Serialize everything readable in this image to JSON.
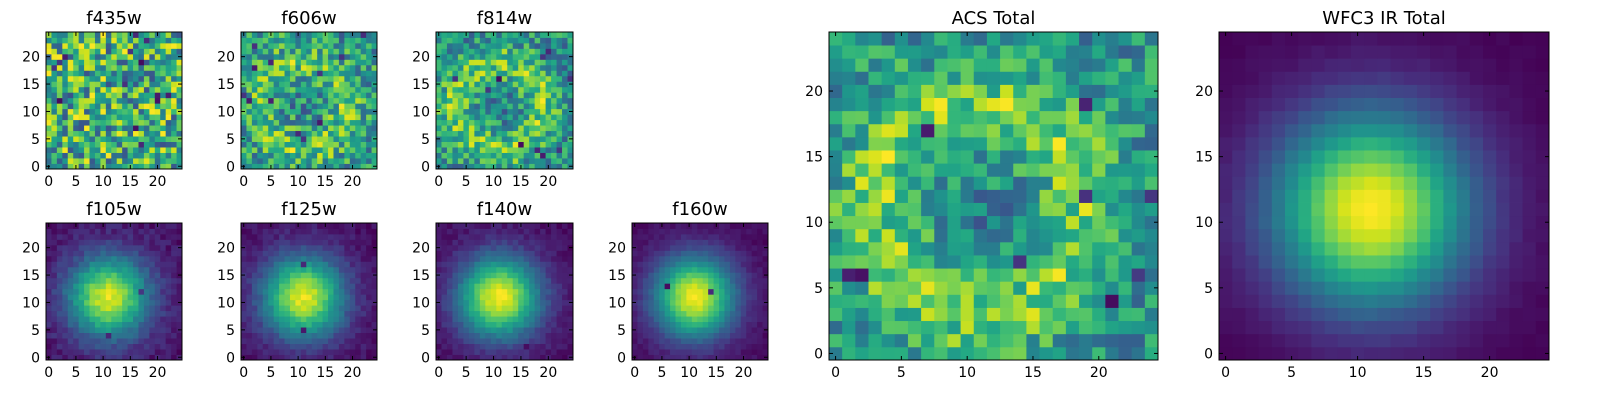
{
  "colormap": "viridis",
  "chart_data": [
    {
      "type": "heatmap",
      "title": "f435w",
      "xticks": [
        0,
        5,
        10,
        15,
        20
      ],
      "yticks": [
        0,
        5,
        10,
        15,
        20
      ],
      "xlim": [
        -0.5,
        24.5
      ],
      "ylim": [
        -0.5,
        24.5
      ],
      "grid_size": 25,
      "pattern": "noise",
      "contrast": 0.3,
      "noise": 0.9,
      "dark_pixels": 14,
      "seed": 11
    },
    {
      "type": "heatmap",
      "title": "f606w",
      "xticks": [
        0,
        5,
        10,
        15,
        20
      ],
      "yticks": [
        0,
        5,
        10,
        15,
        20
      ],
      "xlim": [
        -0.5,
        24.5
      ],
      "ylim": [
        -0.5,
        24.5
      ],
      "grid_size": 25,
      "pattern": "ring",
      "contrast": 0.45,
      "noise": 0.55,
      "dark_pixels": 12,
      "seed": 23
    },
    {
      "type": "heatmap",
      "title": "f814w",
      "xticks": [
        0,
        5,
        10,
        15,
        20
      ],
      "yticks": [
        0,
        5,
        10,
        15,
        20
      ],
      "xlim": [
        -0.5,
        24.5
      ],
      "ylim": [
        -0.5,
        24.5
      ],
      "grid_size": 25,
      "pattern": "ring",
      "contrast": 0.55,
      "noise": 0.45,
      "dark_pixels": 10,
      "seed": 37
    },
    {
      "type": "heatmap",
      "title": "f105w",
      "xticks": [
        0,
        5,
        10,
        15,
        20
      ],
      "yticks": [
        0,
        5,
        10,
        15,
        20
      ],
      "xlim": [
        -0.5,
        24.5
      ],
      "ylim": [
        -0.5,
        24.5
      ],
      "grid_size": 25,
      "pattern": "blob",
      "contrast": 1.0,
      "noise": 0.12,
      "dark_pixels": 3,
      "seed": 41
    },
    {
      "type": "heatmap",
      "title": "f125w",
      "xticks": [
        0,
        5,
        10,
        15,
        20
      ],
      "yticks": [
        0,
        5,
        10,
        15,
        20
      ],
      "xlim": [
        -0.5,
        24.5
      ],
      "ylim": [
        -0.5,
        24.5
      ],
      "grid_size": 25,
      "pattern": "blob",
      "contrast": 1.0,
      "noise": 0.1,
      "dark_pixels": 3,
      "seed": 53
    },
    {
      "type": "heatmap",
      "title": "f140w",
      "xticks": [
        0,
        5,
        10,
        15,
        20
      ],
      "yticks": [
        0,
        5,
        10,
        15,
        20
      ],
      "xlim": [
        -0.5,
        24.5
      ],
      "ylim": [
        -0.5,
        24.5
      ],
      "grid_size": 25,
      "pattern": "blob",
      "contrast": 1.0,
      "noise": 0.08,
      "dark_pixels": 2,
      "seed": 67
    },
    {
      "type": "heatmap",
      "title": "f160w",
      "xticks": [
        0,
        5,
        10,
        15,
        20
      ],
      "yticks": [
        0,
        5,
        10,
        15,
        20
      ],
      "xlim": [
        -0.5,
        24.5
      ],
      "ylim": [
        -0.5,
        24.5
      ],
      "grid_size": 25,
      "pattern": "blob",
      "contrast": 1.0,
      "noise": 0.06,
      "dark_pixels": 2,
      "seed": 71
    },
    {
      "type": "heatmap",
      "title": "ACS Total",
      "xticks": [
        0,
        5,
        10,
        15,
        20
      ],
      "yticks": [
        0,
        5,
        10,
        15,
        20
      ],
      "xlim": [
        -0.5,
        24.5
      ],
      "ylim": [
        -0.5,
        24.5
      ],
      "grid_size": 25,
      "pattern": "ring",
      "contrast": 0.5,
      "noise": 0.35,
      "dark_pixels": 9,
      "seed": 83
    },
    {
      "type": "heatmap",
      "title": "WFC3 IR Total",
      "xticks": [
        0,
        5,
        10,
        15,
        20
      ],
      "yticks": [
        0,
        5,
        10,
        15,
        20
      ],
      "xlim": [
        -0.5,
        24.5
      ],
      "ylim": [
        -0.5,
        24.5
      ],
      "grid_size": 25,
      "pattern": "blob",
      "contrast": 1.0,
      "noise": 0.02,
      "dark_pixels": 0,
      "seed": 97
    }
  ]
}
